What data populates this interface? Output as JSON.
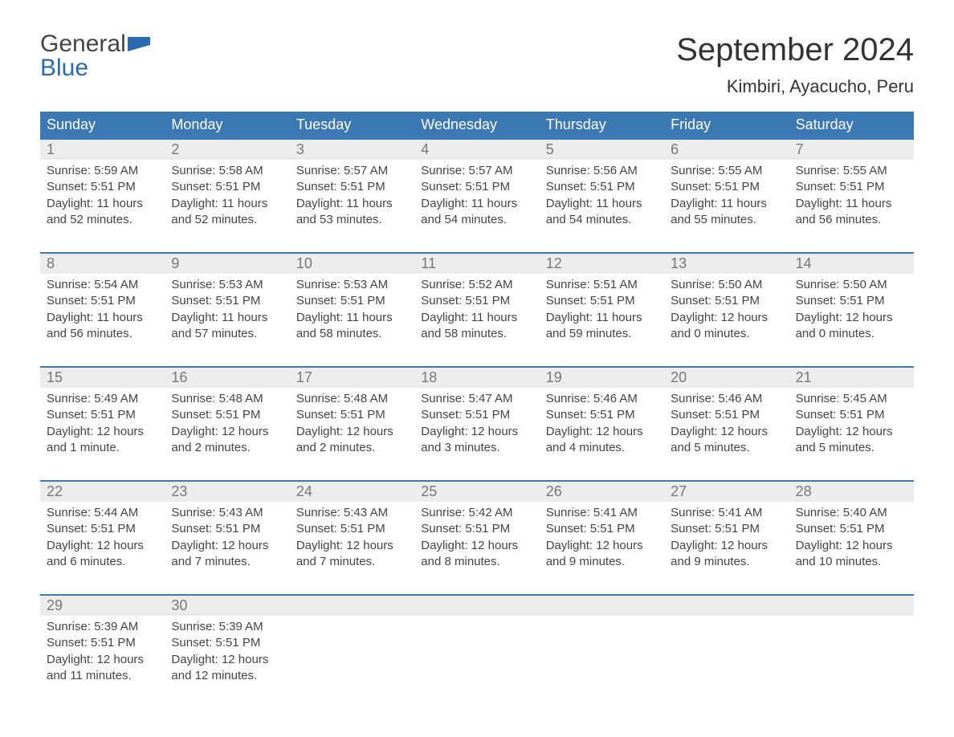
{
  "brand": {
    "word1": "General",
    "word2": "Blue",
    "text_color": "#444444",
    "accent_color": "#2a6bb0"
  },
  "title": "September 2024",
  "location": "Kimbiri, Ayacucho, Peru",
  "colors": {
    "header_bg": "#3c78b4",
    "header_text": "#ffffff",
    "date_bg": "#ececec",
    "date_text": "#777777",
    "body_text": "#444444",
    "week_border": "#3c78b4",
    "page_bg": "#ffffff"
  },
  "typography": {
    "title_fontsize": 40,
    "location_fontsize": 22,
    "dayheader_fontsize": 18,
    "date_fontsize": 18,
    "body_fontsize": 15
  },
  "calendar": {
    "type": "table",
    "day_names": [
      "Sunday",
      "Monday",
      "Tuesday",
      "Wednesday",
      "Thursday",
      "Friday",
      "Saturday"
    ],
    "weeks": [
      [
        {
          "date": "1",
          "sunrise": "Sunrise: 5:59 AM",
          "sunset": "Sunset: 5:51 PM",
          "daylight": "Daylight: 11 hours and 52 minutes."
        },
        {
          "date": "2",
          "sunrise": "Sunrise: 5:58 AM",
          "sunset": "Sunset: 5:51 PM",
          "daylight": "Daylight: 11 hours and 52 minutes."
        },
        {
          "date": "3",
          "sunrise": "Sunrise: 5:57 AM",
          "sunset": "Sunset: 5:51 PM",
          "daylight": "Daylight: 11 hours and 53 minutes."
        },
        {
          "date": "4",
          "sunrise": "Sunrise: 5:57 AM",
          "sunset": "Sunset: 5:51 PM",
          "daylight": "Daylight: 11 hours and 54 minutes."
        },
        {
          "date": "5",
          "sunrise": "Sunrise: 5:56 AM",
          "sunset": "Sunset: 5:51 PM",
          "daylight": "Daylight: 11 hours and 54 minutes."
        },
        {
          "date": "6",
          "sunrise": "Sunrise: 5:55 AM",
          "sunset": "Sunset: 5:51 PM",
          "daylight": "Daylight: 11 hours and 55 minutes."
        },
        {
          "date": "7",
          "sunrise": "Sunrise: 5:55 AM",
          "sunset": "Sunset: 5:51 PM",
          "daylight": "Daylight: 11 hours and 56 minutes."
        }
      ],
      [
        {
          "date": "8",
          "sunrise": "Sunrise: 5:54 AM",
          "sunset": "Sunset: 5:51 PM",
          "daylight": "Daylight: 11 hours and 56 minutes."
        },
        {
          "date": "9",
          "sunrise": "Sunrise: 5:53 AM",
          "sunset": "Sunset: 5:51 PM",
          "daylight": "Daylight: 11 hours and 57 minutes."
        },
        {
          "date": "10",
          "sunrise": "Sunrise: 5:53 AM",
          "sunset": "Sunset: 5:51 PM",
          "daylight": "Daylight: 11 hours and 58 minutes."
        },
        {
          "date": "11",
          "sunrise": "Sunrise: 5:52 AM",
          "sunset": "Sunset: 5:51 PM",
          "daylight": "Daylight: 11 hours and 58 minutes."
        },
        {
          "date": "12",
          "sunrise": "Sunrise: 5:51 AM",
          "sunset": "Sunset: 5:51 PM",
          "daylight": "Daylight: 11 hours and 59 minutes."
        },
        {
          "date": "13",
          "sunrise": "Sunrise: 5:50 AM",
          "sunset": "Sunset: 5:51 PM",
          "daylight": "Daylight: 12 hours and 0 minutes."
        },
        {
          "date": "14",
          "sunrise": "Sunrise: 5:50 AM",
          "sunset": "Sunset: 5:51 PM",
          "daylight": "Daylight: 12 hours and 0 minutes."
        }
      ],
      [
        {
          "date": "15",
          "sunrise": "Sunrise: 5:49 AM",
          "sunset": "Sunset: 5:51 PM",
          "daylight": "Daylight: 12 hours and 1 minute."
        },
        {
          "date": "16",
          "sunrise": "Sunrise: 5:48 AM",
          "sunset": "Sunset: 5:51 PM",
          "daylight": "Daylight: 12 hours and 2 minutes."
        },
        {
          "date": "17",
          "sunrise": "Sunrise: 5:48 AM",
          "sunset": "Sunset: 5:51 PM",
          "daylight": "Daylight: 12 hours and 2 minutes."
        },
        {
          "date": "18",
          "sunrise": "Sunrise: 5:47 AM",
          "sunset": "Sunset: 5:51 PM",
          "daylight": "Daylight: 12 hours and 3 minutes."
        },
        {
          "date": "19",
          "sunrise": "Sunrise: 5:46 AM",
          "sunset": "Sunset: 5:51 PM",
          "daylight": "Daylight: 12 hours and 4 minutes."
        },
        {
          "date": "20",
          "sunrise": "Sunrise: 5:46 AM",
          "sunset": "Sunset: 5:51 PM",
          "daylight": "Daylight: 12 hours and 5 minutes."
        },
        {
          "date": "21",
          "sunrise": "Sunrise: 5:45 AM",
          "sunset": "Sunset: 5:51 PM",
          "daylight": "Daylight: 12 hours and 5 minutes."
        }
      ],
      [
        {
          "date": "22",
          "sunrise": "Sunrise: 5:44 AM",
          "sunset": "Sunset: 5:51 PM",
          "daylight": "Daylight: 12 hours and 6 minutes."
        },
        {
          "date": "23",
          "sunrise": "Sunrise: 5:43 AM",
          "sunset": "Sunset: 5:51 PM",
          "daylight": "Daylight: 12 hours and 7 minutes."
        },
        {
          "date": "24",
          "sunrise": "Sunrise: 5:43 AM",
          "sunset": "Sunset: 5:51 PM",
          "daylight": "Daylight: 12 hours and 7 minutes."
        },
        {
          "date": "25",
          "sunrise": "Sunrise: 5:42 AM",
          "sunset": "Sunset: 5:51 PM",
          "daylight": "Daylight: 12 hours and 8 minutes."
        },
        {
          "date": "26",
          "sunrise": "Sunrise: 5:41 AM",
          "sunset": "Sunset: 5:51 PM",
          "daylight": "Daylight: 12 hours and 9 minutes."
        },
        {
          "date": "27",
          "sunrise": "Sunrise: 5:41 AM",
          "sunset": "Sunset: 5:51 PM",
          "daylight": "Daylight: 12 hours and 9 minutes."
        },
        {
          "date": "28",
          "sunrise": "Sunrise: 5:40 AM",
          "sunset": "Sunset: 5:51 PM",
          "daylight": "Daylight: 12 hours and 10 minutes."
        }
      ],
      [
        {
          "date": "29",
          "sunrise": "Sunrise: 5:39 AM",
          "sunset": "Sunset: 5:51 PM",
          "daylight": "Daylight: 12 hours and 11 minutes."
        },
        {
          "date": "30",
          "sunrise": "Sunrise: 5:39 AM",
          "sunset": "Sunset: 5:51 PM",
          "daylight": "Daylight: 12 hours and 12 minutes."
        },
        null,
        null,
        null,
        null,
        null
      ]
    ]
  }
}
